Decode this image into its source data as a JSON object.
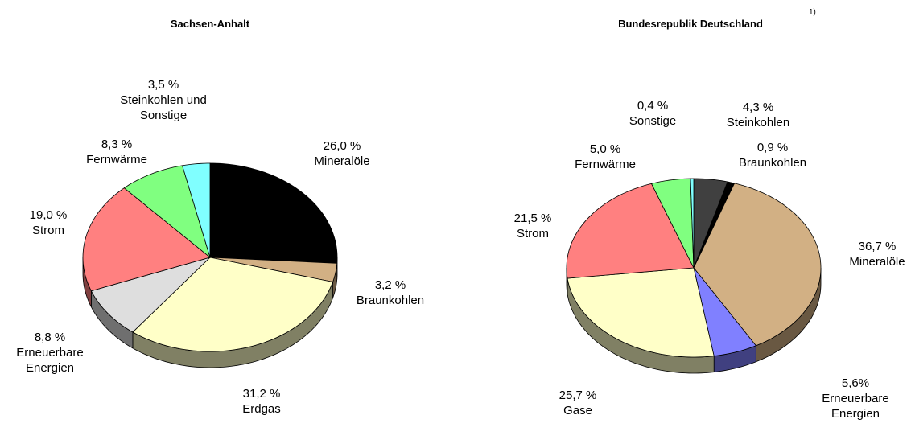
{
  "chart_data": [
    {
      "type": "pie",
      "title": "Sachsen-Anhalt",
      "categories": [
        "Mineralöle",
        "Braunkohlen",
        "Erdgas",
        "Erneuerbare Energien",
        "Strom",
        "Fernwärme",
        "Steinkohlen und Sonstige"
      ],
      "values": [
        26.0,
        3.2,
        31.2,
        8.8,
        19.0,
        8.3,
        3.5
      ],
      "value_labels": [
        "26,0 %",
        "3,2 %",
        "31,2 %",
        "8,8 %",
        "19,0 %",
        "8,3 %",
        "3,5 %"
      ],
      "colors": [
        "#000000",
        "#d2b084",
        "#ffffc8",
        "#dedede",
        "#ff8080",
        "#80ff80",
        "#80ffff"
      ]
    },
    {
      "type": "pie",
      "title": "Bundesrepublik Deutschland",
      "note": "1)",
      "categories": [
        "Steinkohlen",
        "Braunkohlen",
        "Mineralöle",
        "Erneuerbare Energien",
        "Gase",
        "Strom",
        "Fernwärme",
        "Sonstige"
      ],
      "values": [
        4.3,
        0.9,
        36.7,
        5.6,
        25.7,
        21.5,
        5.0,
        0.4
      ],
      "value_labels": [
        "4,3 %",
        "0,9 %",
        "36,7 %",
        "5,6%",
        "25,7 %",
        "21,5 %",
        "5,0 %",
        "0,4 %"
      ],
      "colors": [
        "#404040",
        "#000000",
        "#d2b084",
        "#8080ff",
        "#ffffc8",
        "#ff8080",
        "#80ff80",
        "#80ffff"
      ]
    }
  ]
}
